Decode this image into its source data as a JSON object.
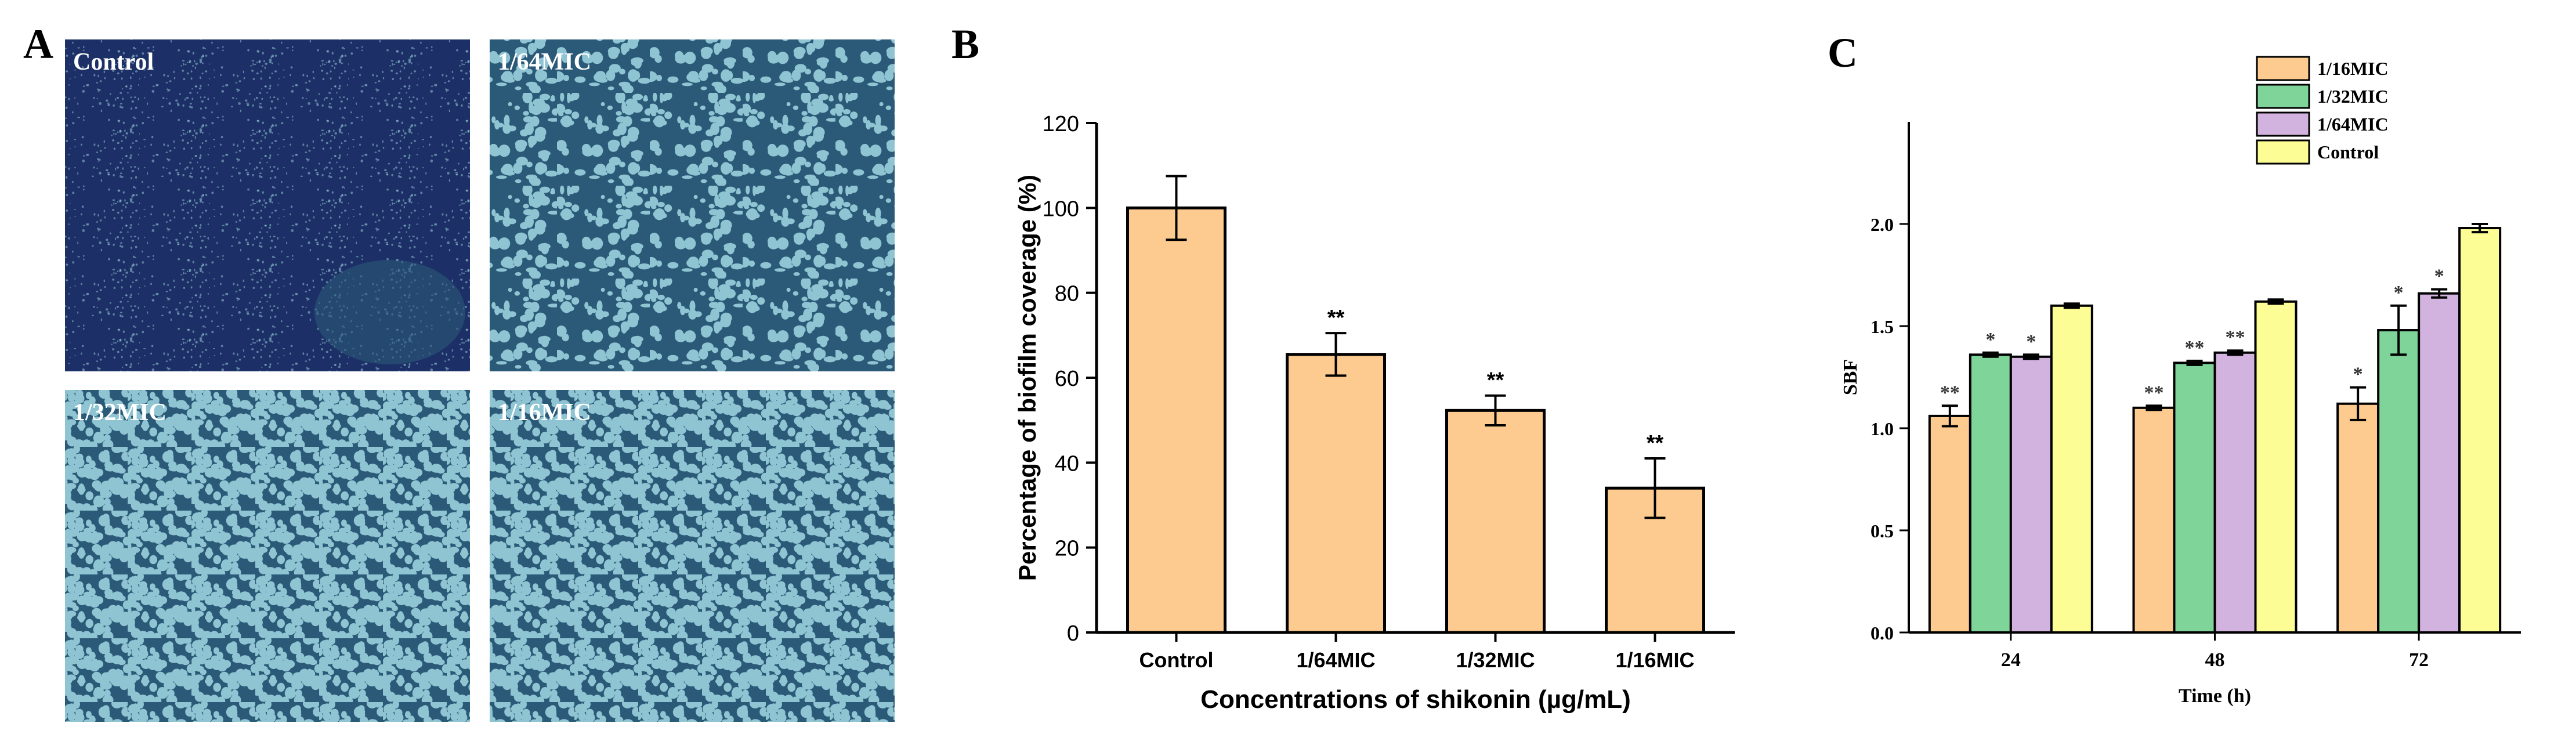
{
  "panel_a": {
    "letter": "A",
    "images": [
      {
        "label": "Control",
        "texture": "dense"
      },
      {
        "label": "1/64MIC",
        "texture": "sparse"
      },
      {
        "label": "1/32MIC",
        "texture": "mesh"
      },
      {
        "label": "1/16MIC",
        "texture": "mesh"
      }
    ],
    "colors": {
      "dark": "#1c2f66",
      "mid": "#2b5a78",
      "light": "#8fc4d2"
    }
  },
  "chart_data": [
    {
      "panel": "B",
      "type": "bar",
      "title": "",
      "xlabel": "Concentrations of shikonin (µg/mL)",
      "ylabel": "Percentage of biofilm coverage (%)",
      "categories": [
        "Control",
        "1/64MIC",
        "1/32MIC",
        "1/16MIC"
      ],
      "values": [
        100,
        65.5,
        52.3,
        34
      ],
      "errors": [
        7.5,
        5,
        3.5,
        7
      ],
      "annotations": [
        "",
        "**",
        "**",
        "**"
      ],
      "ylim": [
        0,
        120
      ],
      "yticks": [
        0,
        20,
        40,
        60,
        80,
        100,
        120
      ],
      "color": "#fdcb8f"
    },
    {
      "panel": "C",
      "type": "bar",
      "title": "",
      "xlabel": "Time (h)",
      "ylabel": "SBF",
      "categories": [
        "24",
        "48",
        "72"
      ],
      "ylim": [
        0,
        2.5
      ],
      "yticks": [
        0.0,
        0.5,
        1.0,
        1.5,
        2.0
      ],
      "legend_position": "top-center",
      "series": [
        {
          "name": "1/16MIC",
          "color": "#fdcb8f",
          "values": [
            1.06,
            1.1,
            1.12
          ],
          "errors": [
            0.05,
            0.01,
            0.08
          ],
          "annotations": [
            "**",
            "**",
            "*"
          ]
        },
        {
          "name": "1/32MIC",
          "color": "#7fd49a",
          "values": [
            1.36,
            1.32,
            1.48
          ],
          "errors": [
            0.01,
            0.01,
            0.12
          ],
          "annotations": [
            "*",
            "**",
            "*"
          ]
        },
        {
          "name": "1/64MIC",
          "color": "#d2b3df",
          "values": [
            1.35,
            1.37,
            1.66
          ],
          "errors": [
            0.01,
            0.01,
            0.02
          ],
          "annotations": [
            "*",
            "**",
            "*"
          ]
        },
        {
          "name": "Control",
          "color": "#fdfd96",
          "values": [
            1.6,
            1.62,
            1.98
          ],
          "errors": [
            0.01,
            0.01,
            0.02
          ],
          "annotations": [
            "",
            "",
            ""
          ]
        }
      ]
    }
  ],
  "panel_letters": {
    "b": "B",
    "c": "C"
  }
}
